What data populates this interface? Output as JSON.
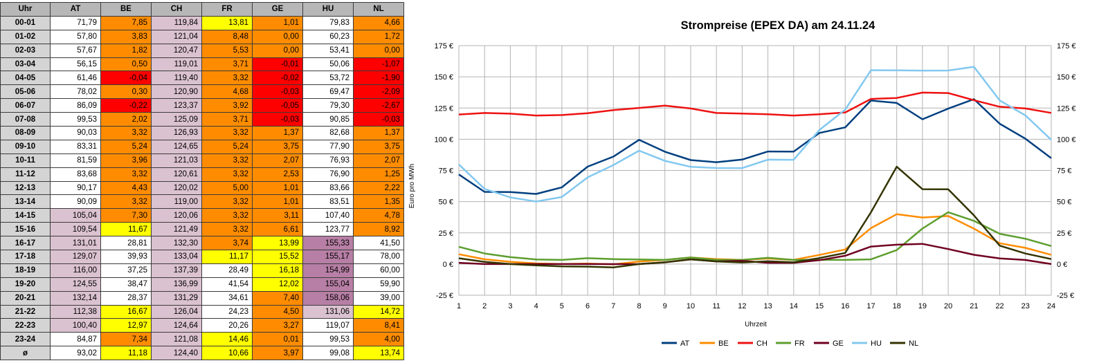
{
  "table": {
    "headers": [
      "Uhr",
      "AT",
      "BE",
      "CH",
      "FR",
      "GE",
      "HU",
      "NL"
    ],
    "rows": [
      {
        "h": "00-01",
        "v": [
          "71,79",
          "7,85",
          "119,84",
          "13,81",
          "1,01",
          "79,83",
          "4,66"
        ],
        "c": [
          "w",
          "o",
          "p",
          "y",
          "o",
          "w",
          "o"
        ]
      },
      {
        "h": "01-02",
        "v": [
          "57,80",
          "3,83",
          "121,04",
          "8,48",
          "0,00",
          "60,23",
          "1,72"
        ],
        "c": [
          "w",
          "o",
          "p",
          "o",
          "o",
          "w",
          "o"
        ]
      },
      {
        "h": "02-03",
        "v": [
          "57,67",
          "1,82",
          "120,47",
          "5,53",
          "0,00",
          "53,41",
          "0,00"
        ],
        "c": [
          "w",
          "o",
          "p",
          "o",
          "o",
          "w",
          "o"
        ]
      },
      {
        "h": "03-04",
        "v": [
          "56,15",
          "0,50",
          "119,01",
          "3,71",
          "-0,01",
          "50,06",
          "-1,07"
        ],
        "c": [
          "w",
          "o",
          "p",
          "o",
          "r",
          "w",
          "r"
        ]
      },
      {
        "h": "04-05",
        "v": [
          "61,46",
          "-0,04",
          "119,40",
          "3,32",
          "-0,02",
          "53,72",
          "-1,90"
        ],
        "c": [
          "w",
          "r",
          "p",
          "o",
          "r",
          "w",
          "r"
        ]
      },
      {
        "h": "05-06",
        "v": [
          "78,02",
          "0,30",
          "120,90",
          "4,68",
          "-0,03",
          "69,47",
          "-2,09"
        ],
        "c": [
          "w",
          "o",
          "p",
          "o",
          "r",
          "w",
          "r"
        ]
      },
      {
        "h": "06-07",
        "v": [
          "86,09",
          "-0,22",
          "123,37",
          "3,92",
          "-0,05",
          "79,30",
          "-2,67"
        ],
        "c": [
          "w",
          "r",
          "p",
          "o",
          "r",
          "w",
          "r"
        ]
      },
      {
        "h": "07-08",
        "v": [
          "99,53",
          "2,02",
          "125,09",
          "3,71",
          "-0,03",
          "90,85",
          "-0,03"
        ],
        "c": [
          "w",
          "o",
          "p",
          "o",
          "r",
          "w",
          "r"
        ]
      },
      {
        "h": "08-09",
        "v": [
          "90,03",
          "3,32",
          "126,93",
          "3,32",
          "1,37",
          "82,68",
          "1,37"
        ],
        "c": [
          "w",
          "o",
          "p",
          "o",
          "o",
          "w",
          "o"
        ]
      },
      {
        "h": "09-10",
        "v": [
          "83,31",
          "5,24",
          "124,65",
          "5,24",
          "3,75",
          "77,90",
          "3,75"
        ],
        "c": [
          "w",
          "o",
          "p",
          "o",
          "o",
          "w",
          "o"
        ]
      },
      {
        "h": "10-11",
        "v": [
          "81,59",
          "3,96",
          "121,03",
          "3,32",
          "2,07",
          "76,93",
          "2,07"
        ],
        "c": [
          "w",
          "o",
          "p",
          "o",
          "o",
          "w",
          "o"
        ]
      },
      {
        "h": "11-12",
        "v": [
          "83,68",
          "3,32",
          "120,61",
          "3,32",
          "2,53",
          "76,90",
          "1,25"
        ],
        "c": [
          "w",
          "o",
          "p",
          "o",
          "o",
          "w",
          "o"
        ]
      },
      {
        "h": "12-13",
        "v": [
          "90,17",
          "4,43",
          "120,02",
          "5,00",
          "1,01",
          "83,66",
          "2,22"
        ],
        "c": [
          "w",
          "o",
          "p",
          "o",
          "o",
          "w",
          "o"
        ]
      },
      {
        "h": "13-14",
        "v": [
          "90,09",
          "3,32",
          "119,00",
          "3,32",
          "1,01",
          "83,51",
          "1,35"
        ],
        "c": [
          "w",
          "o",
          "p",
          "o",
          "o",
          "w",
          "o"
        ]
      },
      {
        "h": "14-15",
        "v": [
          "105,04",
          "7,30",
          "120,06",
          "3,32",
          "3,11",
          "107,40",
          "4,78"
        ],
        "c": [
          "p",
          "o",
          "p",
          "o",
          "o",
          "w",
          "o"
        ]
      },
      {
        "h": "15-16",
        "v": [
          "109,54",
          "11,67",
          "121,49",
          "3,32",
          "6,61",
          "123,77",
          "8,92"
        ],
        "c": [
          "p",
          "y",
          "p",
          "o",
          "o",
          "w",
          "o"
        ]
      },
      {
        "h": "16-17",
        "v": [
          "131,01",
          "28,81",
          "132,30",
          "3,74",
          "13,99",
          "155,33",
          "41,50"
        ],
        "c": [
          "p",
          "w",
          "p",
          "o",
          "y",
          "m",
          "w"
        ]
      },
      {
        "h": "17-18",
        "v": [
          "129,07",
          "39,93",
          "133,04",
          "11,17",
          "15,52",
          "155,17",
          "78,00"
        ],
        "c": [
          "p",
          "w",
          "p",
          "y",
          "y",
          "m",
          "w"
        ]
      },
      {
        "h": "18-19",
        "v": [
          "116,00",
          "37,25",
          "137,39",
          "28,49",
          "16,18",
          "154,99",
          "60,00"
        ],
        "c": [
          "p",
          "w",
          "p",
          "w",
          "y",
          "m",
          "w"
        ]
      },
      {
        "h": "19-20",
        "v": [
          "124,55",
          "38,47",
          "136,99",
          "41,54",
          "12,02",
          "155,04",
          "59,90"
        ],
        "c": [
          "p",
          "w",
          "p",
          "w",
          "y",
          "m",
          "w"
        ]
      },
      {
        "h": "20-21",
        "v": [
          "132,14",
          "28,37",
          "131,29",
          "34,61",
          "7,40",
          "158,06",
          "39,00"
        ],
        "c": [
          "p",
          "w",
          "p",
          "w",
          "o",
          "m",
          "w"
        ]
      },
      {
        "h": "21-22",
        "v": [
          "112,38",
          "16,67",
          "126,04",
          "24,23",
          "4,50",
          "131,06",
          "14,72"
        ],
        "c": [
          "p",
          "y",
          "p",
          "w",
          "o",
          "p",
          "y"
        ]
      },
      {
        "h": "22-23",
        "v": [
          "100,40",
          "12,97",
          "124,64",
          "20,26",
          "3,27",
          "119,07",
          "8,41"
        ],
        "c": [
          "p",
          "y",
          "p",
          "w",
          "o",
          "w",
          "o"
        ]
      },
      {
        "h": "23-24",
        "v": [
          "84,87",
          "7,34",
          "121,08",
          "14,46",
          "0,01",
          "99,53",
          "4,00"
        ],
        "c": [
          "w",
          "o",
          "p",
          "y",
          "o",
          "w",
          "o"
        ]
      },
      {
        "h": "ø",
        "v": [
          "93,02",
          "11,18",
          "124,40",
          "10,66",
          "3,97",
          "99,08",
          "13,74"
        ],
        "c": [
          "w",
          "y",
          "p",
          "y",
          "o",
          "w",
          "y"
        ]
      }
    ],
    "cell_colors": {
      "w": "#ffffff",
      "o": "#ff8c00",
      "p": "#dbc2d0",
      "y": "#ffff00",
      "r": "#ff0000",
      "m": "#b77fa5"
    }
  },
  "chart_data": {
    "type": "line",
    "title": "Strompreise (EPEX DA) am 24.11.24",
    "xlabel": "Uhrzeit",
    "ylabel": "Euro pro MWh",
    "x": [
      1,
      2,
      3,
      4,
      5,
      6,
      7,
      8,
      9,
      10,
      11,
      12,
      13,
      14,
      15,
      16,
      17,
      18,
      19,
      20,
      21,
      22,
      23,
      24
    ],
    "ylim": [
      -25,
      175
    ],
    "yticks": [
      -25,
      0,
      25,
      50,
      75,
      100,
      125,
      150,
      175
    ],
    "ytick_labels": [
      "-25 €",
      "0 €",
      "25 €",
      "50 €",
      "75 €",
      "100 €",
      "125 €",
      "150 €",
      "175 €"
    ],
    "grid": true,
    "legend": "bottom",
    "series": [
      {
        "name": "AT",
        "color": "#003f7f",
        "values": [
          71.79,
          57.8,
          57.67,
          56.15,
          61.46,
          78.02,
          86.09,
          99.53,
          90.03,
          83.31,
          81.59,
          83.68,
          90.17,
          90.09,
          105.04,
          109.54,
          131.01,
          129.07,
          116.0,
          124.55,
          132.14,
          112.38,
          100.4,
          84.87
        ]
      },
      {
        "name": "BE",
        "color": "#ff8c00",
        "values": [
          7.85,
          3.83,
          1.82,
          0.5,
          -0.04,
          0.3,
          -0.22,
          2.02,
          3.32,
          5.24,
          3.96,
          3.32,
          4.43,
          3.32,
          7.3,
          11.67,
          28.81,
          39.93,
          37.25,
          38.47,
          28.37,
          16.67,
          12.97,
          7.34
        ]
      },
      {
        "name": "CH",
        "color": "#ee1111",
        "values": [
          119.84,
          121.04,
          120.47,
          119.01,
          119.4,
          120.9,
          123.37,
          125.09,
          126.93,
          124.65,
          121.03,
          120.61,
          120.02,
          119.0,
          120.06,
          121.49,
          132.3,
          133.04,
          137.39,
          136.99,
          131.29,
          126.04,
          124.64,
          121.08
        ]
      },
      {
        "name": "FR",
        "color": "#5c9e2e",
        "values": [
          13.81,
          8.48,
          5.53,
          3.71,
          3.32,
          4.68,
          3.92,
          3.71,
          3.32,
          5.24,
          3.32,
          3.32,
          5.0,
          3.32,
          3.32,
          3.32,
          3.74,
          11.17,
          28.49,
          41.54,
          34.61,
          24.23,
          20.26,
          14.46
        ]
      },
      {
        "name": "GE",
        "color": "#6f0020",
        "values": [
          1.01,
          0.0,
          0.0,
          -0.01,
          -0.02,
          -0.03,
          -0.05,
          -0.03,
          1.37,
          3.75,
          2.07,
          2.53,
          1.01,
          1.01,
          3.11,
          6.61,
          13.99,
          15.52,
          16.18,
          12.02,
          7.4,
          4.5,
          3.27,
          0.01
        ]
      },
      {
        "name": "HU",
        "color": "#82c8f0",
        "values": [
          79.83,
          60.23,
          53.41,
          50.06,
          53.72,
          69.47,
          79.3,
          90.85,
          82.68,
          77.9,
          76.93,
          76.9,
          83.66,
          83.51,
          107.4,
          123.77,
          155.33,
          155.17,
          154.99,
          155.04,
          158.06,
          131.06,
          119.07,
          99.53
        ]
      },
      {
        "name": "NL",
        "color": "#333300",
        "values": [
          4.66,
          1.72,
          0.0,
          -1.07,
          -1.9,
          -2.09,
          -2.67,
          -0.03,
          1.37,
          3.75,
          2.07,
          1.25,
          2.22,
          1.35,
          4.78,
          8.92,
          41.5,
          78.0,
          60.0,
          59.9,
          39.0,
          14.72,
          8.41,
          4.0
        ]
      }
    ]
  }
}
